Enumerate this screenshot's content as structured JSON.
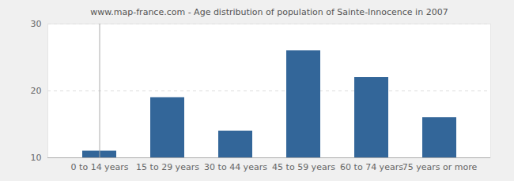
{
  "chart_data": {
    "type": "bar",
    "title": "www.map-france.com - Age distribution of population of Sainte-Innocence in 2007",
    "categories": [
      "0 to 14 years",
      "15 to 29 years",
      "30 to 44 years",
      "45 to 59 years",
      "60 to 74 years",
      "75 years or more"
    ],
    "values": [
      11,
      19,
      14,
      26,
      22,
      16
    ],
    "color": "#336699",
    "ylim": [
      10,
      30
    ],
    "yticks": [
      10,
      20,
      30
    ],
    "grid": true
  }
}
